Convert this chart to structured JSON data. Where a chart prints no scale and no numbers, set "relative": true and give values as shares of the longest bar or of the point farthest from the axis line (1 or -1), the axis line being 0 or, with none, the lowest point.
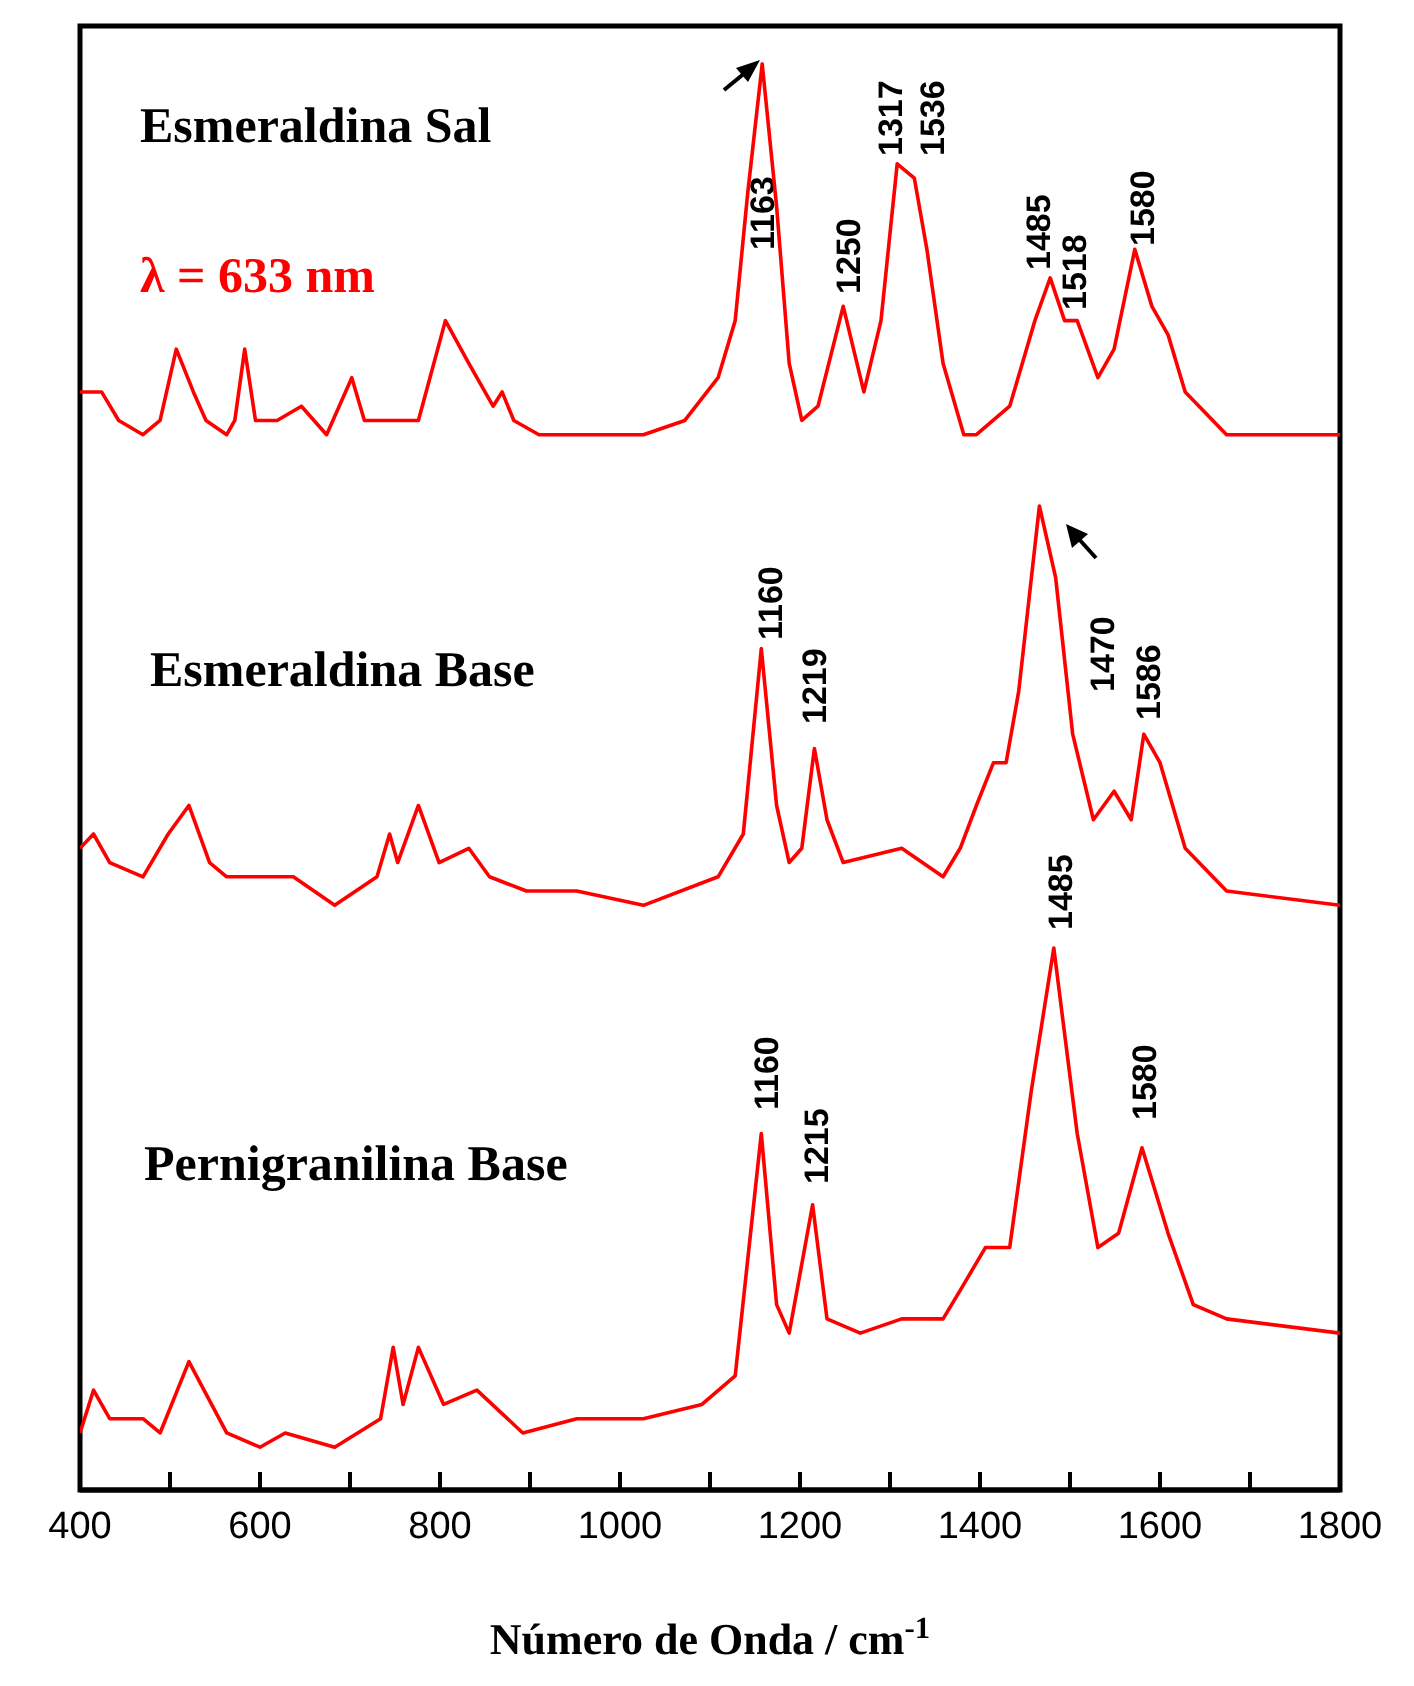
{
  "chart_data": {
    "type": "line",
    "relative": true,
    "xlabel": "Número de Onda / cm$^{-1}$",
    "xlim": [
      400,
      1800
    ],
    "xticks": [
      400,
      {
        "value": 500,
        "label": null
      },
      600,
      {
        "value": 700,
        "label": null
      },
      800,
      {
        "value": 900,
        "label": null
      },
      1000,
      {
        "value": 1100,
        "label": null
      },
      1200,
      {
        "value": 1300,
        "label": null
      },
      1400,
      {
        "value": 1500,
        "label": null
      },
      1600,
      {
        "value": 1700,
        "label": null
      },
      1800
    ],
    "grid": false,
    "legend": false,
    "marker": "none",
    "line_style": "solid",
    "series": [
      {
        "color": "#ff0000",
        "x": [
          400,
          424,
          443,
          470,
          489,
          507,
          526,
          540,
          563,
          572,
          583,
          595,
          619,
          646,
          674,
          702,
          716,
          748,
          776,
          806,
          832,
          859,
          869,
          882,
          910,
          980,
          1026,
          1072,
          1109,
          1128,
          1142,
          1158,
          1174,
          1188,
          1202,
          1220,
          1248,
          1271,
          1290,
          1308,
          1327,
          1341,
          1359,
          1382,
          1396,
          1433,
          1461,
          1478,
          1494,
          1508,
          1531,
          1549,
          1572,
          1591,
          1609,
          1628,
          1674,
          1720,
          1800
        ],
        "values": [
          0.77,
          0.77,
          0.75,
          0.74,
          0.75,
          0.8,
          0.77,
          0.75,
          0.74,
          0.75,
          0.8,
          0.75,
          0.75,
          0.76,
          0.74,
          0.78,
          0.75,
          0.75,
          0.75,
          0.82,
          0.79,
          0.76,
          0.77,
          0.75,
          0.74,
          0.74,
          0.74,
          0.75,
          0.78,
          0.82,
          0.91,
          1.0,
          0.9,
          0.79,
          0.75,
          0.76,
          0.83,
          0.77,
          0.82,
          0.93,
          0.92,
          0.87,
          0.79,
          0.74,
          0.74,
          0.76,
          0.82,
          0.85,
          0.82,
          0.82,
          0.78,
          0.8,
          0.87,
          0.83,
          0.81,
          0.77,
          0.74,
          0.74,
          0.74
        ]
      },
      {
        "color": "#ff0000",
        "x": [
          400,
          415,
          433,
          470,
          498,
          521,
          544,
          563,
          637,
          683,
          730,
          744,
          753,
          776,
          799,
          832,
          855,
          896,
          952,
          1026,
          1109,
          1137,
          1157,
          1174,
          1188,
          1202,
          1216,
          1230,
          1248,
          1313,
          1359,
          1378,
          1396,
          1415,
          1429,
          1443,
          1466,
          1484,
          1503,
          1526,
          1549,
          1568,
          1582,
          1600,
          1628,
          1674,
          1800
        ],
        "values": [
          0.45,
          0.46,
          0.44,
          0.43,
          0.46,
          0.48,
          0.44,
          0.43,
          0.43,
          0.41,
          0.43,
          0.46,
          0.44,
          0.48,
          0.44,
          0.45,
          0.43,
          0.42,
          0.42,
          0.41,
          0.43,
          0.46,
          0.59,
          0.48,
          0.44,
          0.45,
          0.52,
          0.47,
          0.44,
          0.45,
          0.43,
          0.45,
          0.48,
          0.51,
          0.51,
          0.56,
          0.69,
          0.64,
          0.53,
          0.47,
          0.49,
          0.47,
          0.53,
          0.51,
          0.45,
          0.42,
          0.41
        ]
      },
      {
        "color": "#ff0000",
        "x": [
          400,
          415,
          433,
          452,
          470,
          489,
          521,
          563,
          600,
          628,
          683,
          734,
          748,
          759,
          776,
          804,
          841,
          892,
          952,
          1026,
          1091,
          1128,
          1157,
          1174,
          1188,
          1214,
          1230,
          1267,
          1313,
          1359,
          1378,
          1406,
          1433,
          1457,
          1482,
          1508,
          1531,
          1554,
          1580,
          1609,
          1637,
          1674,
          1800
        ],
        "values": [
          0.04,
          0.07,
          0.05,
          0.05,
          0.05,
          0.04,
          0.09,
          0.04,
          0.03,
          0.04,
          0.03,
          0.05,
          0.1,
          0.06,
          0.1,
          0.06,
          0.07,
          0.04,
          0.05,
          0.05,
          0.06,
          0.08,
          0.25,
          0.13,
          0.11,
          0.2,
          0.12,
          0.11,
          0.12,
          0.12,
          0.14,
          0.17,
          0.17,
          0.28,
          0.38,
          0.25,
          0.17,
          0.18,
          0.24,
          0.18,
          0.13,
          0.12,
          0.11
        ]
      }
    ],
    "annotations": [
      "λ = 633 nm",
      "1163",
      "1250",
      "1317",
      "1536",
      "1485",
      "1518",
      "1580",
      "1160",
      "1219",
      "1470",
      "1586",
      "1485",
      "1160",
      "1215",
      "1580",
      "Esmeraldina Sal",
      "Esmeraldina Base",
      "Pernigranilina Base"
    ]
  }
}
